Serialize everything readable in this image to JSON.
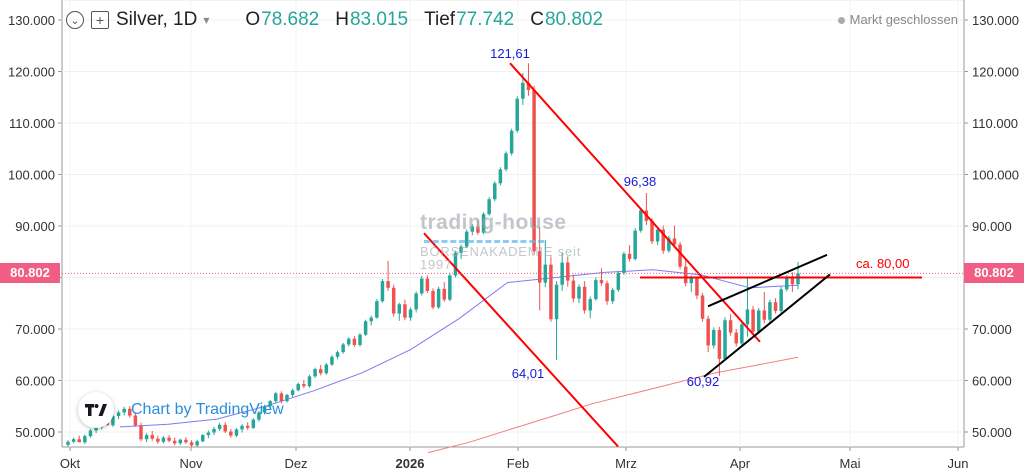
{
  "legend": {
    "symbol": "Silver, 1D",
    "open_label": "O",
    "open": "78.682",
    "high_label": "H",
    "high": "83.015",
    "low_label": "Tief",
    "low": "77.742",
    "close_label": "C",
    "close": "80.802"
  },
  "status": {
    "market": "Markt geschlossen"
  },
  "watermark": {
    "line1": "trading-house",
    "line2": "BÖRSENAKADEMIE seit 1997"
  },
  "branding": {
    "caption": "Chart by TradingView"
  },
  "current_price_label": "80.802",
  "colors": {
    "up": "#26a69a",
    "down": "#ef5350",
    "trend": "#ff0000",
    "wedge": "#000000",
    "ma_fast": "#7b7bf0",
    "ma_slow": "#f08080",
    "price_tag": "#f05d85",
    "annotation": "#1a1ad6"
  },
  "chart_data": {
    "type": "candlestick",
    "title": "Silver, 1D",
    "y_axis": {
      "ticks": [
        "50.000",
        "60.000",
        "70.000",
        "80.000",
        "90.000",
        "100.000",
        "110.000",
        "120.000",
        "130.000"
      ],
      "ylim": [
        47,
        133
      ]
    },
    "x_axis": {
      "ticks": [
        "Okt",
        "Nov",
        "Dez",
        "2026",
        "Feb",
        "Mrz",
        "Apr",
        "Mai",
        "Jun"
      ]
    },
    "annotations": [
      {
        "text": "121,61",
        "value": 121.61,
        "position": "peak"
      },
      {
        "text": "96,38",
        "value": 96.38,
        "position": "lower-high"
      },
      {
        "text": "64,01",
        "value": 64.01,
        "position": "low"
      },
      {
        "text": "60,92",
        "value": 60.92,
        "position": "low"
      },
      {
        "text": "ca. 80,00",
        "value": 80.0,
        "position": "resistance"
      }
    ],
    "ohlc_last": {
      "open": 78.682,
      "high": 83.015,
      "low": 77.742,
      "close": 80.802
    },
    "candles": [
      [
        47.5,
        48.4,
        47.2,
        48.1
      ],
      [
        48.1,
        48.9,
        47.8,
        48.6
      ],
      [
        48.6,
        49.3,
        48.2,
        48.0
      ],
      [
        48.0,
        49.5,
        47.7,
        49.2
      ],
      [
        49.2,
        50.6,
        48.9,
        50.3
      ],
      [
        50.3,
        51.2,
        49.8,
        50.9
      ],
      [
        50.9,
        52.3,
        50.5,
        52.0
      ],
      [
        52.0,
        53.3,
        51.6,
        51.3
      ],
      [
        51.3,
        53.6,
        51.0,
        53.1
      ],
      [
        53.1,
        54.2,
        52.5,
        53.8
      ],
      [
        53.8,
        54.9,
        53.2,
        54.5
      ],
      [
        54.5,
        55.0,
        52.8,
        53.2
      ],
      [
        53.2,
        53.8,
        51.0,
        51.3
      ],
      [
        51.3,
        51.8,
        48.2,
        48.6
      ],
      [
        48.6,
        49.8,
        48.0,
        49.4
      ],
      [
        49.4,
        50.2,
        48.3,
        48.7
      ],
      [
        48.7,
        49.3,
        47.7,
        48.1
      ],
      [
        48.1,
        49.2,
        47.8,
        48.9
      ],
      [
        48.9,
        49.4,
        48.0,
        48.3
      ],
      [
        48.3,
        48.9,
        47.4,
        47.8
      ],
      [
        47.8,
        48.7,
        47.5,
        48.5
      ],
      [
        48.5,
        49.0,
        47.7,
        48.0
      ],
      [
        48.0,
        48.4,
        47.0,
        47.4
      ],
      [
        47.4,
        48.5,
        47.1,
        48.2
      ],
      [
        48.2,
        49.6,
        48.0,
        49.4
      ],
      [
        49.4,
        50.3,
        48.8,
        49.9
      ],
      [
        49.9,
        51.0,
        49.4,
        50.6
      ],
      [
        50.6,
        51.8,
        50.2,
        51.4
      ],
      [
        51.4,
        51.9,
        49.8,
        50.1
      ],
      [
        50.1,
        50.6,
        48.9,
        49.3
      ],
      [
        49.3,
        50.8,
        49.0,
        50.5
      ],
      [
        50.5,
        51.5,
        49.9,
        51.2
      ],
      [
        51.2,
        51.9,
        50.4,
        50.8
      ],
      [
        50.8,
        52.7,
        50.6,
        52.4
      ],
      [
        52.4,
        54.1,
        52.0,
        53.8
      ],
      [
        53.8,
        55.3,
        53.4,
        55.0
      ],
      [
        55.0,
        56.2,
        54.5,
        56.0
      ],
      [
        56.0,
        57.8,
        55.6,
        57.5
      ],
      [
        57.5,
        57.9,
        55.6,
        56.0
      ],
      [
        56.0,
        57.4,
        55.7,
        57.2
      ],
      [
        57.2,
        58.4,
        56.8,
        58.1
      ],
      [
        58.1,
        59.6,
        57.9,
        59.3
      ],
      [
        59.3,
        60.1,
        58.5,
        58.9
      ],
      [
        58.9,
        61.1,
        58.6,
        60.8
      ],
      [
        60.8,
        62.5,
        60.5,
        62.2
      ],
      [
        62.2,
        63.0,
        61.0,
        61.4
      ],
      [
        61.4,
        63.4,
        61.1,
        63.1
      ],
      [
        63.1,
        64.9,
        62.8,
        64.6
      ],
      [
        64.6,
        65.8,
        64.1,
        65.5
      ],
      [
        65.5,
        67.3,
        65.2,
        67.0
      ],
      [
        67.0,
        68.4,
        66.6,
        68.1
      ],
      [
        68.1,
        68.6,
        66.5,
        66.9
      ],
      [
        66.9,
        69.2,
        66.6,
        68.9
      ],
      [
        68.9,
        71.8,
        68.6,
        71.5
      ],
      [
        71.5,
        72.6,
        70.7,
        72.2
      ],
      [
        72.2,
        75.8,
        72.0,
        75.4
      ],
      [
        75.4,
        79.7,
        75.1,
        79.3
      ],
      [
        79.3,
        83.2,
        77.4,
        78.0
      ],
      [
        78.0,
        78.6,
        72.4,
        73.0
      ],
      [
        73.0,
        75.1,
        71.6,
        74.8
      ],
      [
        74.8,
        75.7,
        71.7,
        72.2
      ],
      [
        72.2,
        74.2,
        71.6,
        73.8
      ],
      [
        73.8,
        77.3,
        73.2,
        76.9
      ],
      [
        76.9,
        80.3,
        76.5,
        79.8
      ],
      [
        79.8,
        80.4,
        77.0,
        77.4
      ],
      [
        77.4,
        77.9,
        73.8,
        74.2
      ],
      [
        74.2,
        78.2,
        73.9,
        77.8
      ],
      [
        77.8,
        79.1,
        75.3,
        75.7
      ],
      [
        75.7,
        80.8,
        75.4,
        80.4
      ],
      [
        80.4,
        85.2,
        80.0,
        84.8
      ],
      [
        84.8,
        86.4,
        83.6,
        86.0
      ],
      [
        86.0,
        89.3,
        85.7,
        88.9
      ],
      [
        88.9,
        90.4,
        88.2,
        89.9
      ],
      [
        89.9,
        91.2,
        88.3,
        88.7
      ],
      [
        88.7,
        92.7,
        88.4,
        92.3
      ],
      [
        92.3,
        95.6,
        92.0,
        95.2
      ],
      [
        95.2,
        98.7,
        94.8,
        98.3
      ],
      [
        98.3,
        101.4,
        97.9,
        101.0
      ],
      [
        101.0,
        104.5,
        100.6,
        104.1
      ],
      [
        104.1,
        108.9,
        103.7,
        108.5
      ],
      [
        108.5,
        115.2,
        108.1,
        114.7
      ],
      [
        114.7,
        119.7,
        113.5,
        117.8
      ],
      [
        117.8,
        121.6,
        115.3,
        116.4
      ],
      [
        116.4,
        117.2,
        84.4,
        85.1
      ],
      [
        85.1,
        89.8,
        73.6,
        79.0
      ],
      [
        79.0,
        87.3,
        78.1,
        82.5
      ],
      [
        82.5,
        84.1,
        71.4,
        71.9
      ],
      [
        71.9,
        79.3,
        64.0,
        78.6
      ],
      [
        78.6,
        84.8,
        77.4,
        82.9
      ],
      [
        82.9,
        84.1,
        78.2,
        79.4
      ],
      [
        79.4,
        80.6,
        75.2,
        75.9
      ],
      [
        75.9,
        78.7,
        75.0,
        78.2
      ],
      [
        78.2,
        79.3,
        73.0,
        73.6
      ],
      [
        73.6,
        76.3,
        72.1,
        75.8
      ],
      [
        75.8,
        80.0,
        75.5,
        79.5
      ],
      [
        79.5,
        81.8,
        78.4,
        78.9
      ],
      [
        78.9,
        79.4,
        74.7,
        75.4
      ],
      [
        75.4,
        78.0,
        74.9,
        77.6
      ],
      [
        77.6,
        81.3,
        77.2,
        80.9
      ],
      [
        80.9,
        85.0,
        80.5,
        84.6
      ],
      [
        84.6,
        86.3,
        83.1,
        83.6
      ],
      [
        83.6,
        89.6,
        83.3,
        89.1
      ],
      [
        89.1,
        93.5,
        88.7,
        93.0
      ],
      [
        93.0,
        96.4,
        90.2,
        91.0
      ],
      [
        91.0,
        91.5,
        86.5,
        87.0
      ],
      [
        87.0,
        89.8,
        86.3,
        89.3
      ],
      [
        89.3,
        90.1,
        84.6,
        85.2
      ],
      [
        85.2,
        88.1,
        84.8,
        87.6
      ],
      [
        87.6,
        90.1,
        85.9,
        86.4
      ],
      [
        86.4,
        86.9,
        81.6,
        82.1
      ],
      [
        82.1,
        83.5,
        78.3,
        78.9
      ],
      [
        78.9,
        80.4,
        77.2,
        79.8
      ],
      [
        79.8,
        80.2,
        75.8,
        76.5
      ],
      [
        76.5,
        77.0,
        71.4,
        72.0
      ],
      [
        72.0,
        72.6,
        65.5,
        66.8
      ],
      [
        66.8,
        70.3,
        66.2,
        69.8
      ],
      [
        69.8,
        70.4,
        60.9,
        64.2
      ],
      [
        64.2,
        72.3,
        63.8,
        71.7
      ],
      [
        71.7,
        72.9,
        68.7,
        69.3
      ],
      [
        69.3,
        70.0,
        66.6,
        67.2
      ],
      [
        67.2,
        71.3,
        66.9,
        70.9
      ],
      [
        70.9,
        80.2,
        68.5,
        73.8
      ],
      [
        73.8,
        74.5,
        69.0,
        69.5
      ],
      [
        69.5,
        74.1,
        69.1,
        73.6
      ],
      [
        73.6,
        77.2,
        71.1,
        71.8
      ],
      [
        71.8,
        75.7,
        71.4,
        75.2
      ],
      [
        75.2,
        76.0,
        73.0,
        73.5
      ],
      [
        73.5,
        78.2,
        73.1,
        77.7
      ],
      [
        77.7,
        80.5,
        77.3,
        80.1
      ],
      [
        80.1,
        81.0,
        77.2,
        78.7
      ],
      [
        78.7,
        83.0,
        77.7,
        80.8
      ]
    ],
    "trendlines": [
      {
        "name": "resistance-line",
        "from": [
          121.61
        ],
        "to": [
          67.5
        ]
      },
      {
        "name": "parallel-line",
        "from": [
          88.6
        ],
        "to": [
          47.2
        ]
      },
      {
        "name": "horizontal",
        "value": 80.0
      }
    ],
    "moving_averages": [
      {
        "color": "blue",
        "values": [
          51.0,
          51.5,
          52.5,
          55.0,
          58.0,
          61.5,
          66.0,
          72.0,
          79.0,
          80.0,
          81.0,
          81.5,
          80.5,
          78.0,
          78.5
        ]
      },
      {
        "color": "red",
        "values": [
          46.0,
          48.0,
          50.5,
          53.0,
          55.5,
          57.5,
          59.5,
          61.5,
          63.0,
          64.5
        ]
      }
    ]
  }
}
